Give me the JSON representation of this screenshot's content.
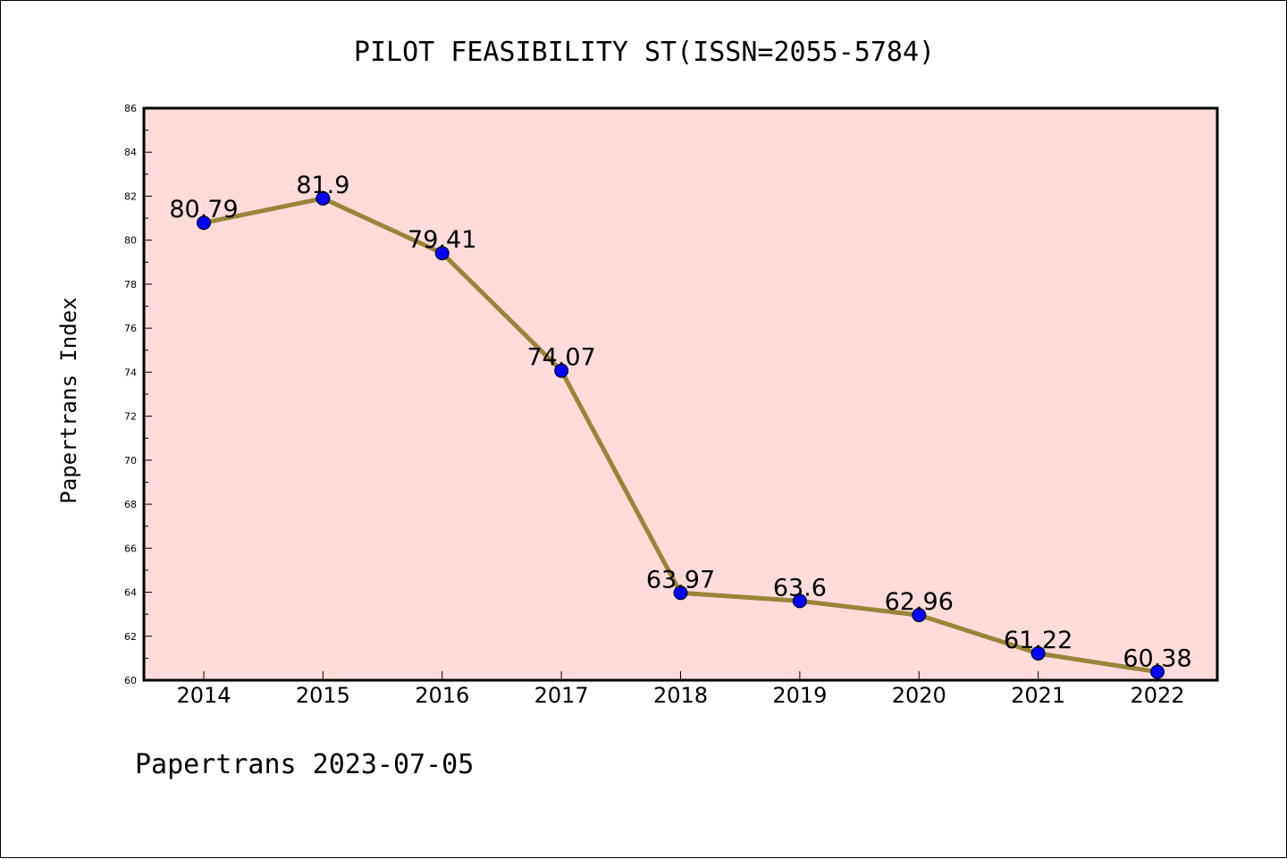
{
  "chart_data": {
    "type": "line",
    "title": "PILOT FEASIBILITY ST(ISSN=2055-5784)",
    "ylabel": "Papertrans Index",
    "xlabel": "",
    "categories": [
      "2014",
      "2015",
      "2016",
      "2017",
      "2018",
      "2019",
      "2020",
      "2021",
      "2022"
    ],
    "series": [
      {
        "values": [
          80.79,
          81.9,
          79.41,
          74.07,
          63.97,
          63.6,
          62.96,
          61.22,
          60.38
        ],
        "labels": [
          "80.79",
          "81.9",
          "79.41",
          "74.07",
          "63.97",
          "63.6",
          "62.96",
          "61.22",
          "60.38"
        ]
      }
    ],
    "ylim": [
      60,
      86
    ],
    "y_ticks": [
      "60",
      "62",
      "64",
      "66",
      "68",
      "70",
      "72",
      "74",
      "76",
      "78",
      "80",
      "82",
      "84",
      "86"
    ],
    "grid": false,
    "legend": "none",
    "colors": {
      "plot_background": "#ffdcda",
      "line": "#9a8437",
      "marker": "#0000ff",
      "frame": "#000000"
    }
  },
  "footer": {
    "text": "Papertrans 2023-07-05"
  }
}
